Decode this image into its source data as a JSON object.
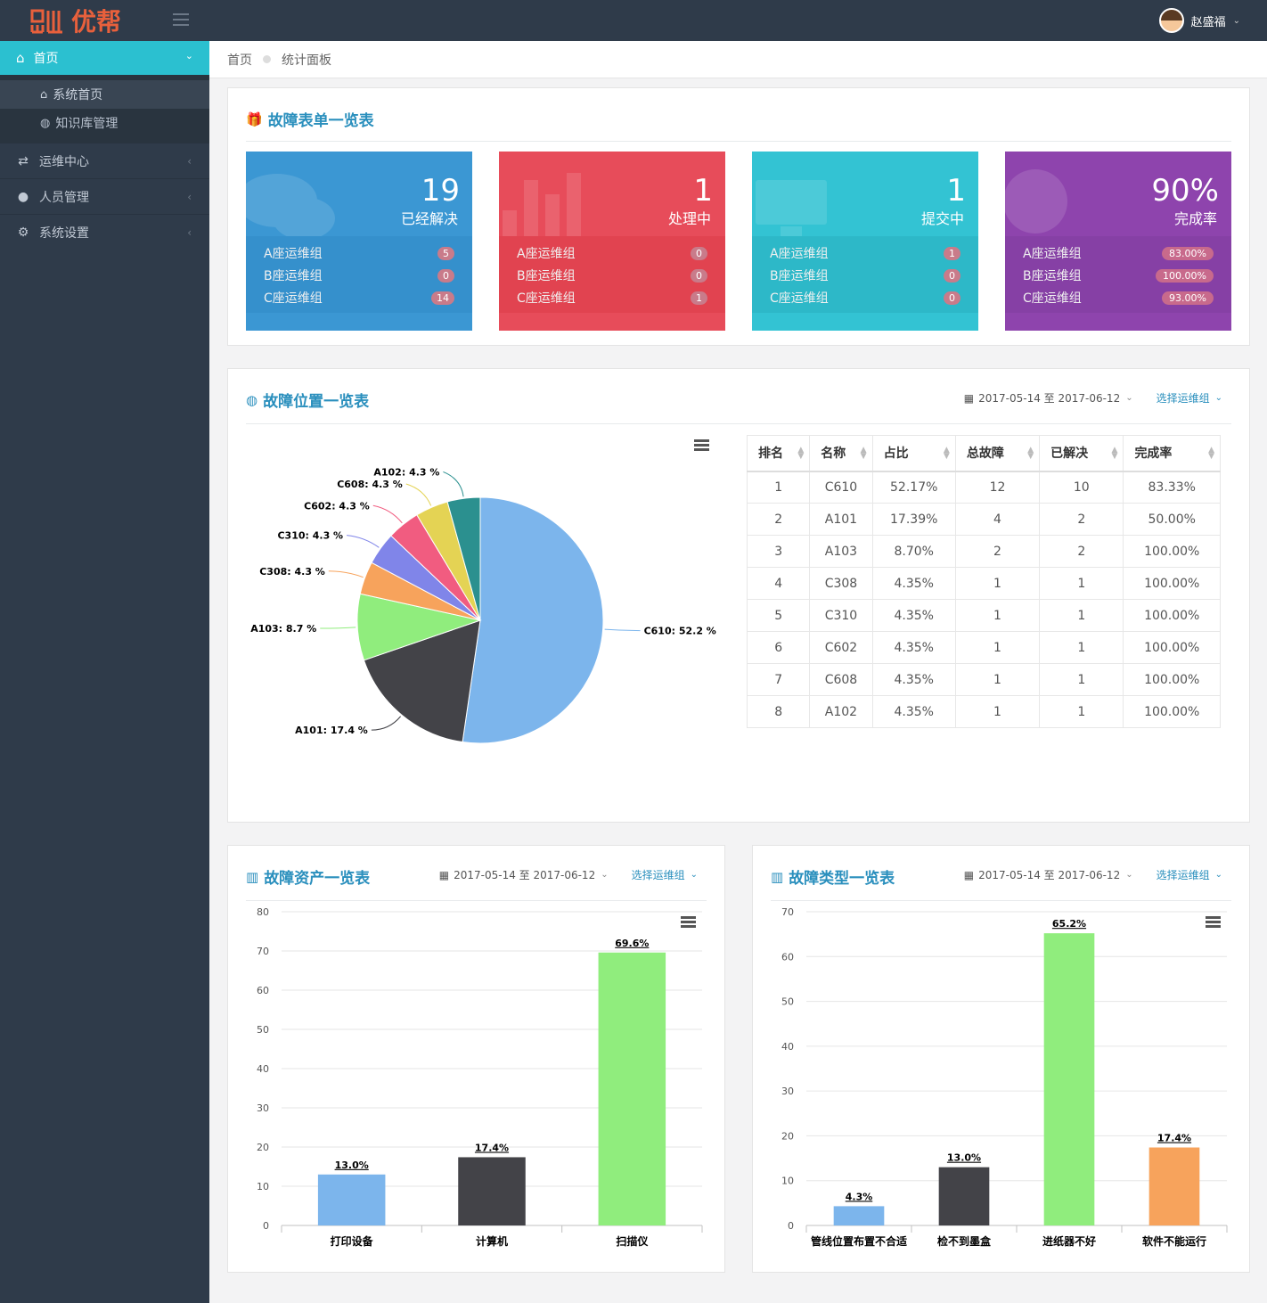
{
  "app": {
    "logo_text": "优帮",
    "user_name": "赵盛福"
  },
  "sidebar": {
    "active": {
      "label": "首页"
    },
    "sub_items": [
      {
        "label": "系统首页"
      },
      {
        "label": "知识库管理"
      }
    ],
    "items": [
      {
        "label": "运维中心"
      },
      {
        "label": "人员管理"
      },
      {
        "label": "系统设置"
      }
    ]
  },
  "breadcrumb": {
    "home": "首页",
    "current": "统计面板"
  },
  "panel1": {
    "title": "故障表单一览表",
    "boxes": [
      {
        "value": "19",
        "label": "已经解决",
        "color": "#3b97d3",
        "rows": [
          {
            "name": "A座运维组",
            "value": "5"
          },
          {
            "name": "B座运维组",
            "value": "0"
          },
          {
            "name": "C座运维组",
            "value": "14"
          }
        ]
      },
      {
        "value": "1",
        "label": "处理中",
        "color": "#e74c5a",
        "rows": [
          {
            "name": "A座运维组",
            "value": "0"
          },
          {
            "name": "B座运维组",
            "value": "0"
          },
          {
            "name": "C座运维组",
            "value": "1"
          }
        ]
      },
      {
        "value": "1",
        "label": "提交中",
        "color": "#33c3d3",
        "rows": [
          {
            "name": "A座运维组",
            "value": "1"
          },
          {
            "name": "B座运维组",
            "value": "0"
          },
          {
            "name": "C座运维组",
            "value": "0"
          }
        ]
      },
      {
        "value": "90%",
        "label": "完成率",
        "color": "#8e44ad",
        "rows": [
          {
            "name": "A座运维组",
            "value": "83.00%"
          },
          {
            "name": "B座运维组",
            "value": "100.00%"
          },
          {
            "name": "C座运维组",
            "value": "93.00%"
          }
        ]
      }
    ]
  },
  "panel2": {
    "title": "故障位置一览表",
    "date_range": "2017-05-14 至 2017-06-12",
    "group_select": "选择运维组",
    "table": {
      "headers": [
        "排名",
        "名称",
        "占比",
        "总故障",
        "已解决",
        "完成率"
      ],
      "rows": [
        [
          "1",
          "C610",
          "52.17%",
          "12",
          "10",
          "83.33%"
        ],
        [
          "2",
          "A101",
          "17.39%",
          "4",
          "2",
          "50.00%"
        ],
        [
          "3",
          "A103",
          "8.70%",
          "2",
          "2",
          "100.00%"
        ],
        [
          "4",
          "C308",
          "4.35%",
          "1",
          "1",
          "100.00%"
        ],
        [
          "5",
          "C310",
          "4.35%",
          "1",
          "1",
          "100.00%"
        ],
        [
          "6",
          "C602",
          "4.35%",
          "1",
          "1",
          "100.00%"
        ],
        [
          "7",
          "C608",
          "4.35%",
          "1",
          "1",
          "100.00%"
        ],
        [
          "8",
          "A102",
          "4.35%",
          "1",
          "1",
          "100.00%"
        ]
      ]
    }
  },
  "panel3": {
    "title": "故障资产一览表",
    "date_range": "2017-05-14 至 2017-06-12",
    "group_select": "选择运维组"
  },
  "panel4": {
    "title": "故障类型一览表",
    "date_range": "2017-05-14 至 2017-06-12",
    "group_select": "选择运维组"
  },
  "chart_data": [
    {
      "type": "pie",
      "slices": [
        {
          "name": "C610",
          "value": 52.2,
          "label": "C610: 52.2 %",
          "color": "#7cb5ec"
        },
        {
          "name": "A101",
          "value": 17.4,
          "label": "A101: 17.4 %",
          "color": "#434348"
        },
        {
          "name": "A103",
          "value": 8.7,
          "label": "A103: 8.7 %",
          "color": "#90ed7d"
        },
        {
          "name": "C308",
          "value": 4.3,
          "label": "C308: 4.3 %",
          "color": "#f7a35c"
        },
        {
          "name": "C310",
          "value": 4.3,
          "label": "C310: 4.3 %",
          "color": "#8085e9"
        },
        {
          "name": "C602",
          "value": 4.3,
          "label": "C602: 4.3 %",
          "color": "#f15c80"
        },
        {
          "name": "C608",
          "value": 4.3,
          "label": "C608: 4.3 %",
          "color": "#e4d354"
        },
        {
          "name": "A102",
          "value": 4.3,
          "label": "A102: 4.3 %",
          "color": "#2b908f"
        }
      ]
    },
    {
      "type": "bar",
      "categories": [
        "打印设备",
        "计算机",
        "扫描仪"
      ],
      "values": [
        13.0,
        17.4,
        69.6
      ],
      "data_labels": [
        "13.0%",
        "17.4%",
        "69.6%"
      ],
      "colors": [
        "#7cb5ec",
        "#434348",
        "#90ed7d"
      ],
      "ylim": [
        0,
        80
      ],
      "yticks": [
        0,
        10,
        20,
        30,
        40,
        50,
        60,
        70,
        80
      ],
      "grid": true
    },
    {
      "type": "bar",
      "categories": [
        "管线位置布置不合适",
        "检不到墨盒",
        "进纸器不好",
        "软件不能运行"
      ],
      "values": [
        4.3,
        13.0,
        65.2,
        17.4
      ],
      "data_labels": [
        "4.3%",
        "13.0%",
        "65.2%",
        "17.4%"
      ],
      "colors": [
        "#7cb5ec",
        "#434348",
        "#90ed7d",
        "#f7a35c"
      ],
      "ylim": [
        0,
        70
      ],
      "yticks": [
        0,
        10,
        20,
        30,
        40,
        50,
        60,
        70
      ],
      "grid": true
    }
  ]
}
